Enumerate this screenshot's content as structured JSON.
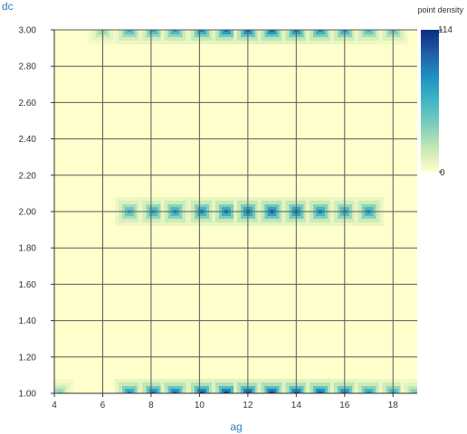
{
  "chart_data": {
    "type": "heatmap",
    "title": "",
    "xlabel": "ag",
    "ylabel": "dc",
    "xlim": [
      4,
      19
    ],
    "ylim": [
      1.0,
      3.0
    ],
    "x_ticks": [
      "4",
      "6",
      "8",
      "10",
      "12",
      "14",
      "16",
      "18"
    ],
    "y_ticks": [
      "1.00",
      "1.20",
      "1.40",
      "1.60",
      "1.80",
      "2.00",
      "2.20",
      "2.40",
      "2.60",
      "2.80",
      "3.00"
    ],
    "grid": true,
    "colorbar": {
      "title": "point density",
      "max_label": "114",
      "min_label": "0",
      "min": 0,
      "max": 114,
      "colors": [
        "#ffffcc",
        "#c7e9b4",
        "#7fcdbb",
        "#41b6c4",
        "#1d91c0",
        "#225ea8",
        "#0c2c84"
      ]
    },
    "clusters": [
      {
        "x": 4.2,
        "y": 1.0,
        "density": 40
      },
      {
        "x": 7.1,
        "y": 1.0,
        "density": 85
      },
      {
        "x": 8.1,
        "y": 1.0,
        "density": 95
      },
      {
        "x": 9.0,
        "y": 1.0,
        "density": 100
      },
      {
        "x": 10.1,
        "y": 1.0,
        "density": 110
      },
      {
        "x": 11.1,
        "y": 1.0,
        "density": 114
      },
      {
        "x": 12.0,
        "y": 1.0,
        "density": 114
      },
      {
        "x": 13.0,
        "y": 1.0,
        "density": 114
      },
      {
        "x": 14.0,
        "y": 1.0,
        "density": 110
      },
      {
        "x": 15.0,
        "y": 1.0,
        "density": 105
      },
      {
        "x": 16.0,
        "y": 1.0,
        "density": 95
      },
      {
        "x": 17.0,
        "y": 1.0,
        "density": 80
      },
      {
        "x": 18.0,
        "y": 1.0,
        "density": 70
      },
      {
        "x": 18.9,
        "y": 1.0,
        "density": 45
      },
      {
        "x": 7.1,
        "y": 2.0,
        "density": 60
      },
      {
        "x": 8.1,
        "y": 2.0,
        "density": 70
      },
      {
        "x": 9.0,
        "y": 2.0,
        "density": 75
      },
      {
        "x": 10.1,
        "y": 2.0,
        "density": 80
      },
      {
        "x": 11.1,
        "y": 2.0,
        "density": 85
      },
      {
        "x": 12.0,
        "y": 2.0,
        "density": 90
      },
      {
        "x": 13.0,
        "y": 2.0,
        "density": 95
      },
      {
        "x": 14.0,
        "y": 2.0,
        "density": 90
      },
      {
        "x": 15.0,
        "y": 2.0,
        "density": 80
      },
      {
        "x": 16.0,
        "y": 2.0,
        "density": 70
      },
      {
        "x": 17.0,
        "y": 2.0,
        "density": 75
      },
      {
        "x": 6.0,
        "y": 3.0,
        "density": 40
      },
      {
        "x": 7.1,
        "y": 3.0,
        "density": 65
      },
      {
        "x": 8.1,
        "y": 3.0,
        "density": 70
      },
      {
        "x": 9.0,
        "y": 3.0,
        "density": 75
      },
      {
        "x": 10.1,
        "y": 3.0,
        "density": 85
      },
      {
        "x": 11.1,
        "y": 3.0,
        "density": 95
      },
      {
        "x": 12.0,
        "y": 3.0,
        "density": 100
      },
      {
        "x": 13.0,
        "y": 3.0,
        "density": 100
      },
      {
        "x": 14.0,
        "y": 3.0,
        "density": 95
      },
      {
        "x": 15.0,
        "y": 3.0,
        "density": 85
      },
      {
        "x": 16.0,
        "y": 3.0,
        "density": 75
      },
      {
        "x": 17.0,
        "y": 3.0,
        "density": 60
      },
      {
        "x": 18.0,
        "y": 3.0,
        "density": 55
      }
    ]
  }
}
